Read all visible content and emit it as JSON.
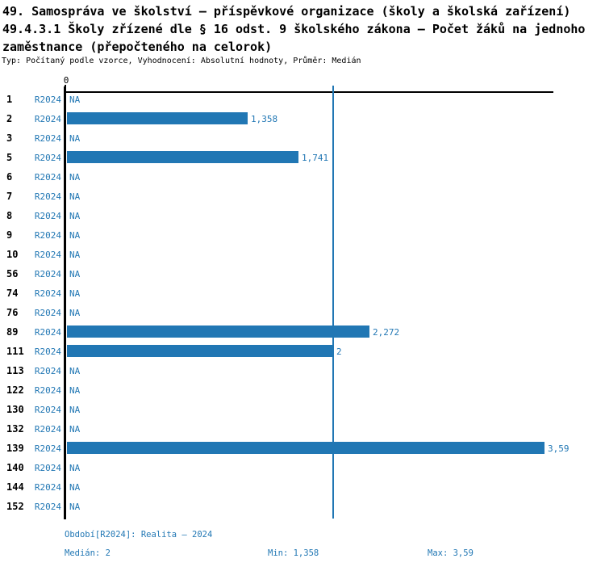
{
  "header": {
    "title_lines": [
      "49. Samospráva ve školství – příspěvkové organizace (školy a školská zařízení)",
      "49.4.3.1 Školy zřízené dle § 16 odst. 9 školského zákona – Počet žáků na jednoho",
      "zaměstnance (přepočteného na celorok)"
    ],
    "meta": "Typ: Počítaný podle vzorce, Vyhodnocení: Absolutní hodnoty, Průměr: Medián"
  },
  "chart_data": {
    "type": "bar",
    "orientation": "horizontal",
    "title": "49.4.3.1 Školy zřízené dle § 16 odst. 9 školského zákona – Počet žáků na jednoho zaměstnance (přepočteného na celorok)",
    "x_axis": {
      "zero_label": "0",
      "xlim": [
        0,
        3.66
      ],
      "grid": false
    },
    "period_label": "R2024",
    "na_label": "NA",
    "median_value": 2,
    "rows": [
      {
        "id": "1",
        "value": null,
        "label": "NA"
      },
      {
        "id": "2",
        "value": 1.358,
        "label": "1,358"
      },
      {
        "id": "3",
        "value": null,
        "label": "NA"
      },
      {
        "id": "5",
        "value": 1.741,
        "label": "1,741"
      },
      {
        "id": "6",
        "value": null,
        "label": "NA"
      },
      {
        "id": "7",
        "value": null,
        "label": "NA"
      },
      {
        "id": "8",
        "value": null,
        "label": "NA"
      },
      {
        "id": "9",
        "value": null,
        "label": "NA"
      },
      {
        "id": "10",
        "value": null,
        "label": "NA"
      },
      {
        "id": "56",
        "value": null,
        "label": "NA"
      },
      {
        "id": "74",
        "value": null,
        "label": "NA"
      },
      {
        "id": "76",
        "value": null,
        "label": "NA"
      },
      {
        "id": "89",
        "value": 2.272,
        "label": "2,272"
      },
      {
        "id": "111",
        "value": 2,
        "label": "2"
      },
      {
        "id": "113",
        "value": null,
        "label": "NA"
      },
      {
        "id": "122",
        "value": null,
        "label": "NA"
      },
      {
        "id": "130",
        "value": null,
        "label": "NA"
      },
      {
        "id": "132",
        "value": null,
        "label": "NA"
      },
      {
        "id": "139",
        "value": 3.59,
        "label": "3,59"
      },
      {
        "id": "140",
        "value": null,
        "label": "NA"
      },
      {
        "id": "144",
        "value": null,
        "label": "NA"
      },
      {
        "id": "152",
        "value": null,
        "label": "NA"
      }
    ]
  },
  "footer": {
    "period": "Období[R2024]: Realita – 2024",
    "median": "Medián: 2",
    "min": "Min: 1,358",
    "max": "Max: 3,59"
  },
  "colors": {
    "accent_blue": "#2177b4",
    "axis_black": "#000000",
    "background": "#ffffff"
  }
}
